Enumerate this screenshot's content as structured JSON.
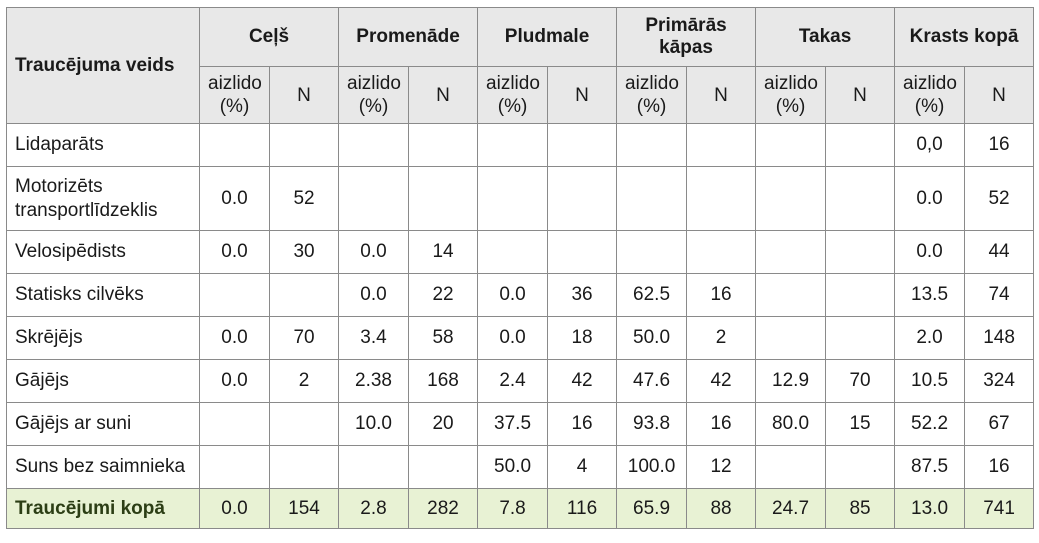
{
  "header": {
    "first": "Traucējuma veids",
    "groups": [
      "Ceļš",
      "Promenāde",
      "Pludmale",
      "Primārās kāpas",
      "Takas",
      "Krasts kopā"
    ],
    "sub_pct": "aizlido (%)",
    "sub_n": "N"
  },
  "rows": [
    {
      "label": "Lidaparāts",
      "cells": [
        "",
        "",
        "",
        "",
        "",
        "",
        "",
        "",
        "",
        "",
        "0,0",
        "16"
      ]
    },
    {
      "label": "Motorizēts transportlīdzeklis",
      "cells": [
        "0.0",
        "52",
        "",
        "",
        "",
        "",
        "",
        "",
        "",
        "",
        "0.0",
        "52"
      ]
    },
    {
      "label": "Velosipēdists",
      "cells": [
        "0.0",
        "30",
        "0.0",
        "14",
        "",
        "",
        "",
        "",
        "",
        "",
        "0.0",
        "44"
      ]
    },
    {
      "label": "Statisks cilvēks",
      "cells": [
        "",
        "",
        "0.0",
        "22",
        "0.0",
        "36",
        "62.5",
        "16",
        "",
        "",
        "13.5",
        "74"
      ]
    },
    {
      "label": "Skrējējs",
      "cells": [
        "0.0",
        "70",
        "3.4",
        "58",
        "0.0",
        "18",
        "50.0",
        "2",
        "",
        "",
        "2.0",
        "148"
      ]
    },
    {
      "label": "Gājējs",
      "cells": [
        "0.0",
        "2",
        "2.38",
        "168",
        "2.4",
        "42",
        "47.6",
        "42",
        "12.9",
        "70",
        "10.5",
        "324"
      ]
    },
    {
      "label": "Gājējs ar suni",
      "cells": [
        "",
        "",
        "10.0",
        "20",
        "37.5",
        "16",
        "93.8",
        "16",
        "80.0",
        "15",
        "52.2",
        "67"
      ]
    },
    {
      "label": "Suns bez saimnieka",
      "cells": [
        "",
        "",
        "",
        "",
        "50.0",
        "4",
        "100.0",
        "12",
        "",
        "",
        "87.5",
        "16"
      ]
    }
  ],
  "total": {
    "label": "Traucējumi kopā",
    "cells": [
      "0.0",
      "154",
      "2.8",
      "282",
      "7.8",
      "116",
      "65.9",
      "88",
      "24.7",
      "85",
      "13.0",
      "741"
    ]
  }
}
